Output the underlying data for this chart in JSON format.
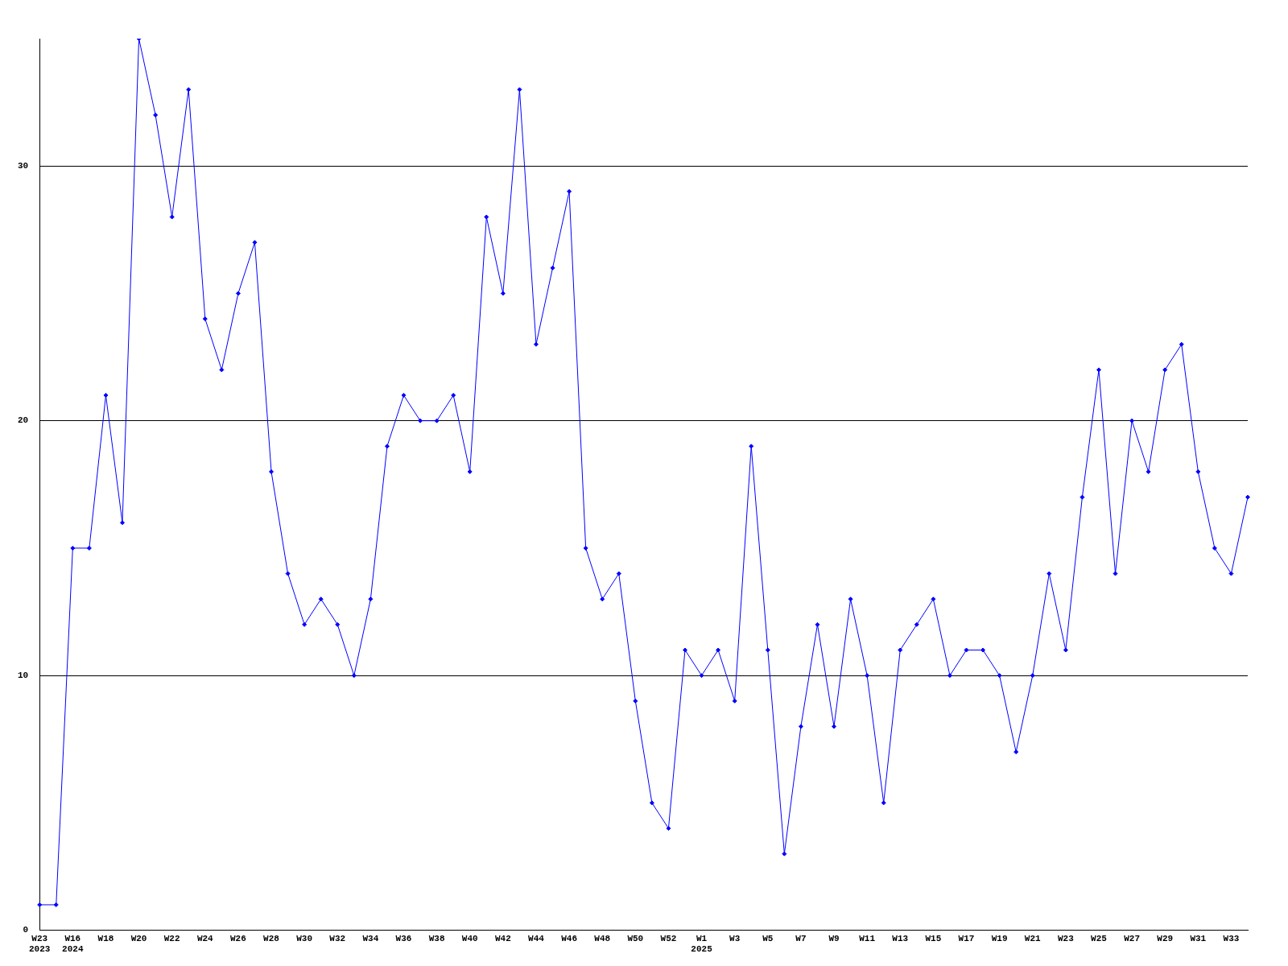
{
  "chart_data": {
    "type": "line",
    "categories": [
      "W23\n2023",
      null,
      "W16\n2024",
      null,
      "W18",
      null,
      "W20",
      null,
      "W22",
      null,
      "W24",
      null,
      "W26",
      null,
      "W28",
      null,
      "W30",
      null,
      "W32",
      null,
      "W34",
      null,
      "W36",
      null,
      "W38",
      null,
      "W40",
      null,
      "W42",
      null,
      "W44",
      null,
      "W46",
      null,
      "W48",
      null,
      "W50",
      null,
      "W52",
      null,
      "W1\n2025",
      null,
      "W3",
      null,
      "W5",
      null,
      "W7",
      null,
      "W9",
      null,
      "W11",
      null,
      "W13",
      null,
      "W15",
      null,
      "W17",
      null,
      "W19",
      null,
      "W21",
      null,
      "W23",
      null,
      "W25",
      null,
      "W27",
      null,
      "W29",
      null,
      "W31",
      null,
      "W33",
      null
    ],
    "series": [
      {
        "color": "#0000ff",
        "values": [
          1,
          1,
          15,
          15,
          21,
          16,
          35,
          32,
          28,
          33,
          24,
          22,
          25,
          27,
          18,
          14,
          12,
          13,
          12,
          10,
          13,
          19,
          21,
          20,
          20,
          21,
          18,
          28,
          25,
          33,
          23,
          26,
          29,
          15,
          13,
          14,
          9,
          5,
          4,
          11,
          10,
          11,
          9,
          19,
          11,
          3,
          8,
          12,
          8,
          13,
          10,
          5,
          11,
          12,
          13,
          10,
          11,
          11,
          10,
          7,
          10,
          14,
          11,
          17,
          22,
          14,
          20,
          18,
          22,
          23,
          18,
          15,
          14,
          17
        ]
      }
    ],
    "ylim": [
      0,
      35
    ],
    "yticks": [
      0,
      10,
      20,
      30
    ],
    "grid": "y",
    "legend": false,
    "marker": "diamond",
    "line_style": "solid"
  }
}
